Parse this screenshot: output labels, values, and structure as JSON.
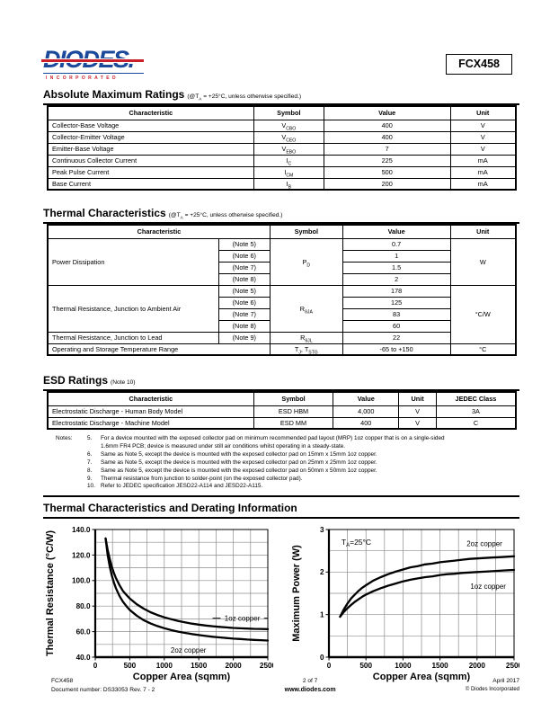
{
  "header": {
    "brand": "DIODES.",
    "brand_sub": "INCORPORATED",
    "part_number": "FCX458",
    "brand_color": "#1b4a9b",
    "accent_red": "#c9202c"
  },
  "sections": {
    "amr": {
      "title": "Absolute Maximum Ratings",
      "subtitle": "(@T~A~ = +25°C, unless otherwise specified.)"
    },
    "thermal": {
      "title": "Thermal Characteristics",
      "subtitle": "(@T~A~ = +25°C, unless otherwise specified.)"
    },
    "esd": {
      "title": "ESD Ratings",
      "subtitle": "(Note 10)"
    },
    "derating": {
      "title": "Thermal Characteristics and Derating Information"
    }
  },
  "amr_table": {
    "headers": [
      "Characteristic",
      "Symbol",
      "Value",
      "Unit"
    ],
    "rows": [
      [
        "Collector-Base Voltage",
        "V~CBO~",
        "400",
        "V"
      ],
      [
        "Collector-Emitter Voltage",
        "V~CEO~",
        "400",
        "V"
      ],
      [
        "Emitter-Base Voltage",
        "V~EBO~",
        "7",
        "V"
      ],
      [
        "Continuous Collector Current",
        "I~C~",
        "225",
        "mA"
      ],
      [
        "Peak Pulse Current",
        "I~CM~",
        "500",
        "mA"
      ],
      [
        "Base Current",
        "I~B~",
        "200",
        "mA"
      ]
    ]
  },
  "thermal_table": {
    "headers": [
      "Characteristic",
      "Symbol",
      "Value",
      "Unit"
    ],
    "pd": {
      "name": "Power Dissipation",
      "symbol": "P~D~",
      "unit": "W",
      "rows": [
        {
          "note": "(Note 5)",
          "v": "0.7"
        },
        {
          "note": "(Note 6)",
          "v": "1"
        },
        {
          "note": "(Note 7)",
          "v": "1.5"
        },
        {
          "note": "(Note 8)",
          "v": "2"
        }
      ]
    },
    "rja": {
      "name": "Thermal Resistance, Junction to Ambient Air",
      "symbol": "R~θJA~",
      "unit": "°C/W",
      "rows": [
        {
          "note": "(Note 5)",
          "v": "178"
        },
        {
          "note": "(Note 6)",
          "v": "125"
        },
        {
          "note": "(Note 7)",
          "v": "83"
        },
        {
          "note": "(Note 8)",
          "v": "60"
        }
      ]
    },
    "rjl": {
      "name": "Thermal Resistance, Junction to Lead",
      "note": "(Note 9)",
      "symbol": "R~θJL~",
      "v": "22"
    },
    "temp": {
      "name": "Operating and Storage Temperature Range",
      "symbol": "T~J~, T~STG~",
      "v": "-65 to +150",
      "u": "°C"
    }
  },
  "esd_table": {
    "headers": [
      "Characteristic",
      "Symbol",
      "Value",
      "Unit",
      "JEDEC Class"
    ],
    "rows": [
      [
        "Electrostatic Discharge - Human Body Model",
        "ESD HBM",
        "4,000",
        "V",
        "3A"
      ],
      [
        "Electrostatic Discharge - Machine Model",
        "ESD MM",
        "400",
        "V",
        "C"
      ]
    ]
  },
  "notes": {
    "label": "Notes:",
    "items": [
      {
        "num": "5.",
        "text": "For a device mounted with the exposed collector pad on minimum recommended pad layout (MRP) 1oz copper that is on a single-sided\n1.6mm FR4 PCB; device is measured under still air conditions whilst operating in a steady-state."
      },
      {
        "num": "6.",
        "text": "Same as Note 5, except the device is mounted with the exposed collector pad on 15mm x 15mm 1oz copper."
      },
      {
        "num": "7.",
        "text": "Same as Note 5, except the device is mounted with the exposed collector pad on 25mm x 25mm 1oz copper."
      },
      {
        "num": "8.",
        "text": "Same as Note 5, except the device is mounted with the exposed collector pad on 50mm x 50mm 1oz copper."
      },
      {
        "num": "9.",
        "text": "Thermal resistance from junction to solder-point (on the exposed collector pad)."
      },
      {
        "num": "10.",
        "text": "Refer to JEDEC specification JESD22-A114 and JESD22-A115."
      }
    ]
  },
  "chart_data": [
    {
      "type": "line",
      "title_y": "Thermal Resistance (°C/W)",
      "title_x": "Copper Area (sqmm)",
      "xlim": [
        0,
        2500
      ],
      "ylim": [
        40,
        140
      ],
      "x_grid_step": 250,
      "y_grid_step": 10,
      "x_ticks": [
        0,
        500,
        1000,
        1500,
        2000,
        2500
      ],
      "y_ticks": [
        40,
        60,
        80,
        100,
        120,
        140
      ],
      "y_tick_decimals": 1,
      "grid": true,
      "series": [
        {
          "name": "1oz copper",
          "label_at": [
            2130,
            70.5
          ],
          "leaders": [
            [
              [
                1700,
                70.5
              ],
              [
                1815,
                70.5
              ]
            ],
            [
              [
                2445,
                70.5
              ],
              [
                2500,
                70.5
              ]
            ]
          ],
          "points": [
            [
              150,
              133
            ],
            [
              180,
              124
            ],
            [
              210,
              117
            ],
            [
              240,
              111
            ],
            [
              270,
              106
            ],
            [
              300,
              102
            ],
            [
              350,
              96.5
            ],
            [
              400,
              92
            ],
            [
              450,
              88.8
            ],
            [
              500,
              86
            ],
            [
              600,
              81.5
            ],
            [
              700,
              78
            ],
            [
              800,
              75.2
            ],
            [
              900,
              73
            ],
            [
              1000,
              71.2
            ],
            [
              1100,
              69.7
            ],
            [
              1200,
              68.4
            ],
            [
              1300,
              67.3
            ],
            [
              1400,
              66.3
            ],
            [
              1500,
              65.5
            ],
            [
              1600,
              64.8
            ],
            [
              1700,
              64.2
            ],
            [
              1800,
              63.7
            ],
            [
              1900,
              63.3
            ],
            [
              2000,
              62.9
            ],
            [
              2100,
              62.6
            ],
            [
              2200,
              62.4
            ],
            [
              2300,
              62.2
            ],
            [
              2400,
              62.1
            ],
            [
              2500,
              62
            ]
          ]
        },
        {
          "name": "2oz copper",
          "label_at": [
            1350,
            45.5
          ],
          "points": [
            [
              150,
              133
            ],
            [
              180,
              120
            ],
            [
              210,
              111
            ],
            [
              240,
              104
            ],
            [
              270,
              98.5
            ],
            [
              300,
              94
            ],
            [
              350,
              88
            ],
            [
              400,
              83.5
            ],
            [
              450,
              80
            ],
            [
              500,
              77
            ],
            [
              600,
              72.5
            ],
            [
              700,
              69
            ],
            [
              800,
              66.5
            ],
            [
              900,
              64.4
            ],
            [
              1000,
              62.7
            ],
            [
              1100,
              61.2
            ],
            [
              1200,
              60
            ],
            [
              1300,
              59
            ],
            [
              1400,
              58.1
            ],
            [
              1500,
              57.3
            ],
            [
              1600,
              56.6
            ],
            [
              1700,
              56
            ],
            [
              1800,
              55.5
            ],
            [
              1900,
              55
            ],
            [
              2000,
              54.5
            ],
            [
              2100,
              54.2
            ],
            [
              2200,
              53.8
            ],
            [
              2300,
              53.5
            ],
            [
              2400,
              53.3
            ],
            [
              2500,
              53
            ]
          ]
        }
      ]
    },
    {
      "type": "line",
      "title_y": "Maximum Power (W)",
      "title_x": "Copper Area (sqmm)",
      "xlim": [
        0,
        2500
      ],
      "ylim": [
        0,
        3
      ],
      "x_grid_step": 250,
      "y_grid_step": 0.5,
      "x_ticks": [
        0,
        500,
        1000,
        1500,
        2000,
        2500
      ],
      "y_ticks": [
        0,
        1,
        2,
        3
      ],
      "y_tick_decimals": 0,
      "grid": true,
      "annotation": {
        "text": "T~A~=25°C",
        "at": [
          370,
          2.64
        ]
      },
      "series": [
        {
          "name": "2oz copper",
          "label_at": [
            2100,
            2.67
          ],
          "points": [
            [
              150,
              0.95
            ],
            [
              200,
              1.12
            ],
            [
              250,
              1.26
            ],
            [
              300,
              1.38
            ],
            [
              350,
              1.47
            ],
            [
              400,
              1.56
            ],
            [
              450,
              1.63
            ],
            [
              500,
              1.69
            ],
            [
              600,
              1.8
            ],
            [
              700,
              1.88
            ],
            [
              800,
              1.95
            ],
            [
              900,
              2.01
            ],
            [
              1000,
              2.06
            ],
            [
              1100,
              2.11
            ],
            [
              1200,
              2.14
            ],
            [
              1300,
              2.18
            ],
            [
              1400,
              2.2
            ],
            [
              1500,
              2.23
            ],
            [
              1600,
              2.25
            ],
            [
              1700,
              2.27
            ],
            [
              1800,
              2.29
            ],
            [
              1900,
              2.31
            ],
            [
              2000,
              2.32
            ],
            [
              2100,
              2.33
            ],
            [
              2200,
              2.34
            ],
            [
              2300,
              2.35
            ],
            [
              2400,
              2.36
            ],
            [
              2500,
              2.37
            ]
          ]
        },
        {
          "name": "1oz copper",
          "label_at": [
            2150,
            1.66
          ],
          "points": [
            [
              150,
              0.95
            ],
            [
              200,
              1.06
            ],
            [
              250,
              1.15
            ],
            [
              300,
              1.23
            ],
            [
              350,
              1.3
            ],
            [
              400,
              1.36
            ],
            [
              450,
              1.42
            ],
            [
              500,
              1.47
            ],
            [
              600,
              1.55
            ],
            [
              700,
              1.62
            ],
            [
              800,
              1.68
            ],
            [
              900,
              1.73
            ],
            [
              1000,
              1.78
            ],
            [
              1100,
              1.82
            ],
            [
              1200,
              1.85
            ],
            [
              1300,
              1.88
            ],
            [
              1400,
              1.9
            ],
            [
              1500,
              1.93
            ],
            [
              1600,
              1.95
            ],
            [
              1700,
              1.96
            ],
            [
              1800,
              1.98
            ],
            [
              1900,
              1.99
            ],
            [
              2000,
              2.0
            ],
            [
              2100,
              2.01
            ],
            [
              2200,
              2.02
            ],
            [
              2300,
              2.03
            ],
            [
              2400,
              2.04
            ],
            [
              2500,
              2.05
            ]
          ]
        }
      ]
    }
  ],
  "footer": {
    "part": "FCX458",
    "doc_number": "Document number: DS33053 Rev. 7 - 2",
    "page": "2 of 7",
    "website": "www.diodes.com",
    "date": "April 2017",
    "copyright": "© Diodes Incorporated"
  }
}
